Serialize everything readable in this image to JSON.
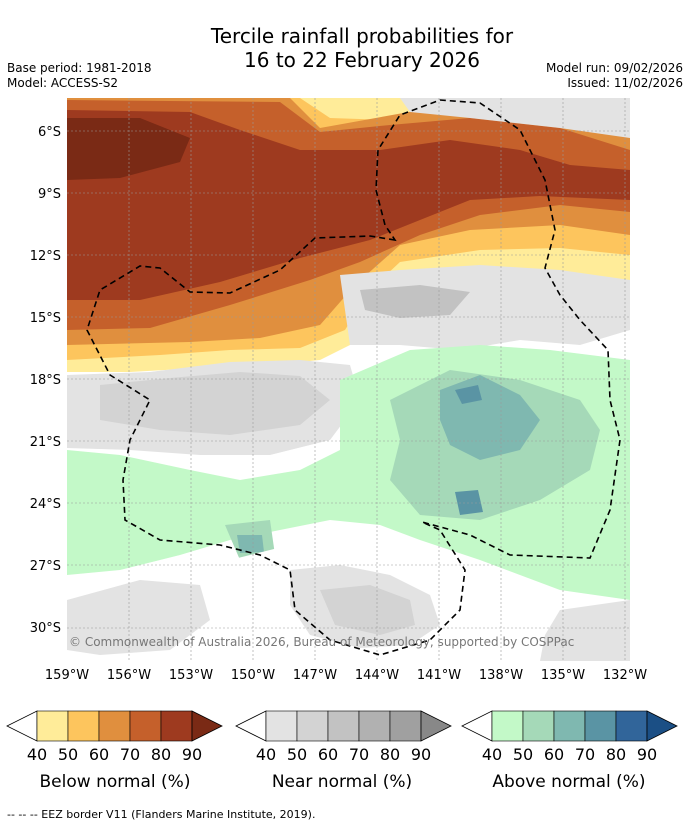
{
  "title_line1": "Tercile rainfall probabilities for",
  "title_line2": "16 to 22 February 2026",
  "base_period": "Base period: 1981-2018",
  "model": "Model: ACCESS-S2",
  "model_run": "Model run: 09/02/2026",
  "issued": "Issued: 11/02/2026",
  "copyright": "© Commonwealth of Australia 2026, Bureau of Meteorology, supported by COSPPac",
  "footer_note": "--  --  -- EEZ border V11 (Flanders Marine Institute, 2019).",
  "chart_data": {
    "type": "map",
    "lon_range": [
      "159°W",
      "131°W"
    ],
    "lat_range": [
      "5°S",
      "31°S"
    ],
    "x_tick_labels": [
      "159°W",
      "156°W",
      "153°W",
      "150°W",
      "147°W",
      "144°W",
      "141°W",
      "138°W",
      "135°W",
      "132°W"
    ],
    "y_tick_labels": [
      "6°S",
      "9°S",
      "12°S",
      "15°S",
      "18°S",
      "21°S",
      "24°S",
      "27°S",
      "30°S"
    ],
    "legend": [
      {
        "name": "Below normal (%)",
        "ticks": [
          "40",
          "50",
          "60",
          "70",
          "80",
          "90"
        ],
        "colors": [
          "#ffec99",
          "#fdc55d",
          "#e08f3e",
          "#c5602b",
          "#9e3a1f",
          "#7a2a15"
        ]
      },
      {
        "name": "Near normal (%)",
        "ticks": [
          "40",
          "50",
          "60",
          "70",
          "80",
          "90"
        ],
        "colors": [
          "#e3e3e3",
          "#d3d3d3",
          "#c2c2c2",
          "#b1b1b1",
          "#a0a0a0",
          "#888888"
        ]
      },
      {
        "name": "Above normal (%)",
        "ticks": [
          "40",
          "50",
          "60",
          "70",
          "80",
          "90"
        ],
        "colors": [
          "#c3f9c8",
          "#a5d9b8",
          "#7fb8b0",
          "#5a94a4",
          "#31659a",
          "#1b4f85"
        ]
      }
    ]
  }
}
